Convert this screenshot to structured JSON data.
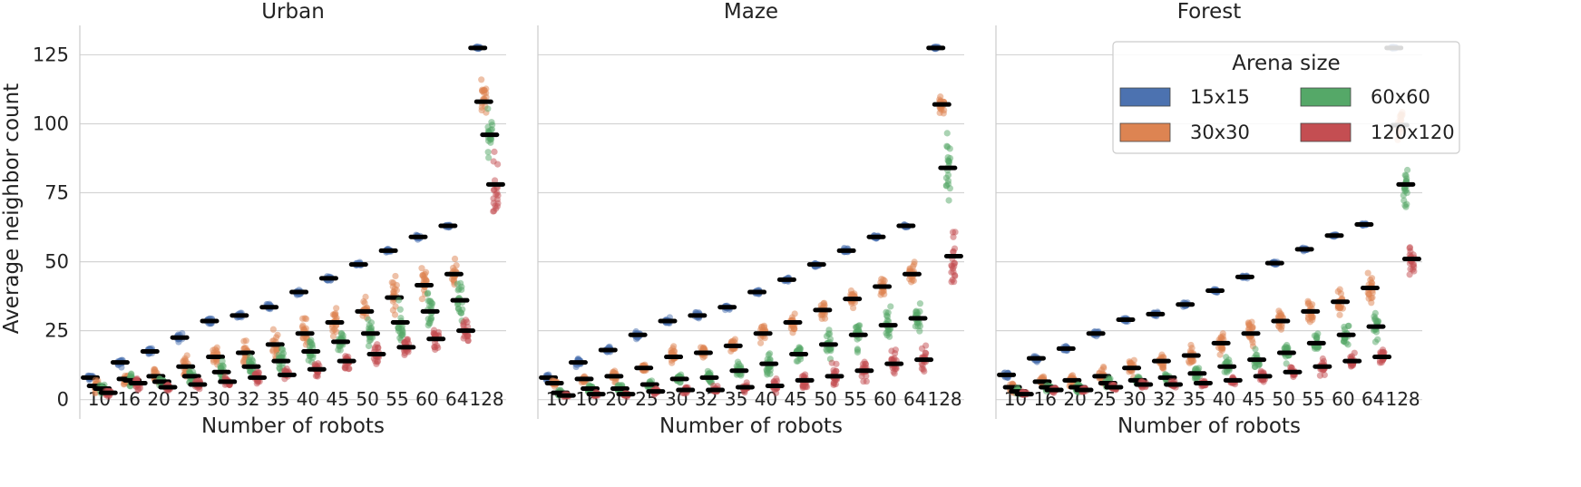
{
  "chart_data": {
    "type": "strip",
    "ylabel": "Average neighbor count",
    "xlabel": "Number of robots",
    "ylim": [
      -7,
      135
    ],
    "yticks": [
      0,
      25,
      50,
      75,
      100,
      125
    ],
    "ytick_labels": [
      "0",
      "25",
      "50",
      "75",
      "100",
      "125"
    ],
    "categories": [
      "10",
      "16",
      "20",
      "25",
      "30",
      "32",
      "35",
      "40",
      "45",
      "50",
      "55",
      "60",
      "64",
      "128"
    ],
    "legend": {
      "title": "Arena size",
      "placement": "top-right of Forest panel",
      "entries": [
        "15x15",
        "30x30",
        "60x60",
        "120x120"
      ]
    },
    "series_colors": {
      "15x15": "#4c72b0",
      "30x30": "#dd8452",
      "60x60": "#55a868",
      "120x120": "#c44e52"
    },
    "panels": [
      {
        "title": "Urban",
        "series": [
          {
            "name": "15x15",
            "means": [
              8,
              13.5,
              17.5,
              22.5,
              28.5,
              30.5,
              33.5,
              39,
              44,
              49,
              54,
              59,
              63,
              127.5
            ],
            "spread": [
              1.3,
              1.6,
              1.6,
              1.6,
              1.5,
              1.4,
              1.2,
              1.1,
              1,
              0.8,
              0.8,
              0.8,
              0.6,
              0.5
            ]
          },
          {
            "name": "30x30",
            "means": [
              5,
              7.5,
              8.5,
              12,
              15.5,
              17,
              20,
              24,
              28,
              32,
              37,
              41.5,
              45.5,
              108
            ],
            "spread": [
              2.4,
              3.5,
              3.5,
              4.5,
              5,
              5.5,
              5.5,
              6,
              6.5,
              7,
              7.5,
              8,
              7.5,
              7
            ]
          },
          {
            "name": "60x60",
            "means": [
              4,
              7,
              6.5,
              8.5,
              10,
              12,
              14,
              17.5,
              21,
              24,
              28,
              32,
              36,
              96
            ],
            "spread": [
              2,
              3,
              2.5,
              3.5,
              4,
              4.5,
              4.5,
              5,
              5.5,
              6,
              6.5,
              7,
              7,
              8
            ]
          },
          {
            "name": "120x120",
            "means": [
              2.5,
              6,
              4.5,
              5.5,
              6.5,
              8,
              9,
              11,
              14,
              16.5,
              19,
              22,
              25,
              78
            ],
            "spread": [
              1.5,
              2.5,
              1.5,
              2,
              2,
              2.5,
              3,
              3.5,
              4,
              4.5,
              5,
              5,
              5.5,
              13
            ]
          }
        ]
      },
      {
        "title": "Maze",
        "series": [
          {
            "name": "15x15",
            "means": [
              8,
              13.5,
              18,
              23.5,
              28.5,
              30.5,
              33.5,
              39,
              43.5,
              49,
              54,
              59,
              63,
              127.5
            ],
            "spread": [
              1.3,
              1.6,
              1.4,
              1.3,
              1.3,
              1.2,
              1,
              1,
              0.9,
              0.8,
              0.8,
              0.7,
              0.6,
              0.5
            ]
          },
          {
            "name": "30x30",
            "means": [
              6,
              7.5,
              8.5,
              11.5,
              15.5,
              17,
              19.5,
              24,
              28,
              32.5,
              36.5,
              41,
              45.5,
              107
            ],
            "spread": [
              1.5,
              1.8,
              2.2,
              2.5,
              3,
              3,
              3.2,
              3.5,
              3.5,
              3.8,
              4,
              4.2,
              4.5,
              4
            ]
          },
          {
            "name": "60x60",
            "means": [
              2.5,
              4,
              4,
              5.5,
              7.5,
              8,
              10.5,
              13,
              16.5,
              20,
              23.5,
              27,
              29.5,
              84
            ],
            "spread": [
              1.2,
              1.5,
              1.8,
              2.2,
              2.5,
              3,
              3.5,
              4.5,
              5,
              5.5,
              6,
              7,
              8,
              16
            ]
          },
          {
            "name": "120x120",
            "means": [
              1.5,
              2,
              2,
              3,
              3.5,
              3.5,
              4.5,
              5,
              7,
              8.5,
              10.5,
              13,
              14.5,
              52
            ],
            "spread": [
              0.8,
              1,
              1,
              1.2,
              1.5,
              1.5,
              2,
              2.5,
              3.5,
              4,
              5,
              6,
              7,
              15
            ]
          }
        ]
      },
      {
        "title": "Forest",
        "series": [
          {
            "name": "15x15",
            "means": [
              9,
              15,
              18.5,
              24,
              29,
              31,
              34.5,
              39.5,
              44.5,
              49.5,
              54.5,
              59.5,
              63.5,
              127.5
            ],
            "spread": [
              1.2,
              1.3,
              1.2,
              1.1,
              1,
              0.9,
              0.8,
              0.8,
              0.7,
              0.6,
              0.6,
              0.5,
              0.5,
              0.4
            ]
          },
          {
            "name": "30x30",
            "means": [
              4.5,
              6.5,
              7,
              8.5,
              11.5,
              14,
              16,
              20.5,
              24,
              28.5,
              32,
              35.5,
              40.5,
              99.5
            ],
            "spread": [
              2.2,
              2.5,
              2.5,
              3,
              3.5,
              4,
              4,
              4.5,
              5,
              5,
              5.5,
              6,
              6,
              6
            ]
          },
          {
            "name": "60x60",
            "means": [
              3,
              4.5,
              4.5,
              6,
              7,
              8,
              9.5,
              12,
              14.5,
              17,
              20.5,
              23.5,
              26.5,
              78
            ],
            "spread": [
              1.5,
              1.8,
              1.8,
              2.2,
              2.5,
              2.8,
              3,
              3.5,
              4,
              4,
              4.5,
              5,
              5.5,
              9
            ]
          },
          {
            "name": "120x120",
            "means": [
              2,
              3.5,
              3.5,
              4.5,
              5.5,
              5.5,
              6,
              7,
              8.5,
              10,
              12,
              14,
              15.5,
              51
            ],
            "spread": [
              1,
              1,
              1,
              1.2,
              1.5,
              1.5,
              1.5,
              2,
              2.2,
              2.5,
              3,
              3,
              3,
              6
            ]
          }
        ]
      }
    ]
  }
}
